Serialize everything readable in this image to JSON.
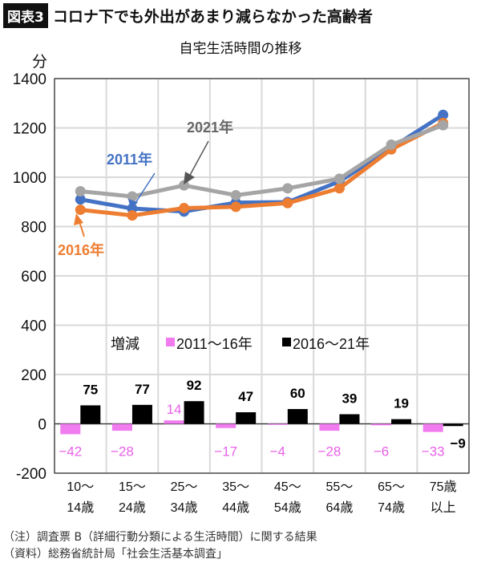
{
  "header": {
    "badge": "図表3",
    "title": "コロナ下でも外出があまり減らなかった高齢者"
  },
  "notes": [
    "（注）調査票 B（詳細行動分類による生活時間）に関する結果",
    "（資料）総務省統計局「社会生活基本調査」"
  ],
  "chart_data": {
    "type": "line+bar",
    "title": "自宅生活時間の推移",
    "ylabel": "分",
    "ylim": [
      -200,
      1400
    ],
    "yticks": [
      -200,
      0,
      200,
      400,
      600,
      800,
      1000,
      1200,
      1400
    ],
    "grid": true,
    "categories": [
      [
        "10〜",
        "14歳"
      ],
      [
        "15〜",
        "24歳"
      ],
      [
        "25〜",
        "34歳"
      ],
      [
        "35〜",
        "44歳"
      ],
      [
        "45〜",
        "54歳"
      ],
      [
        "55〜",
        "64歳"
      ],
      [
        "65〜",
        "74歳"
      ],
      [
        "75歳",
        "以上"
      ]
    ],
    "lines": [
      {
        "name": "2011年",
        "color": "#4472c4",
        "values": [
          910,
          873,
          861,
          897,
          899,
          983,
          1119,
          1253
        ]
      },
      {
        "name": "2016年",
        "color": "#ed7d31",
        "values": [
          868,
          845,
          875,
          880,
          895,
          955,
          1113,
          1220
        ]
      },
      {
        "name": "2021年",
        "color": "#a5a5a5",
        "values": [
          943,
          922,
          967,
          927,
          955,
          994,
          1132,
          1211
        ]
      }
    ],
    "line_label_colors": {
      "2021年": "#666666"
    },
    "bar_legend_title": "増減",
    "bars": [
      {
        "name": "2011〜16年",
        "color": "#f07cf0",
        "label_color": "#e860e8",
        "values": [
          -42,
          -28,
          14,
          -17,
          -4,
          -28,
          -6,
          -33
        ]
      },
      {
        "name": "2016〜21年",
        "color": "#000000",
        "label_color": "#000000",
        "values": [
          75,
          77,
          92,
          47,
          60,
          39,
          19,
          -9
        ]
      }
    ]
  }
}
